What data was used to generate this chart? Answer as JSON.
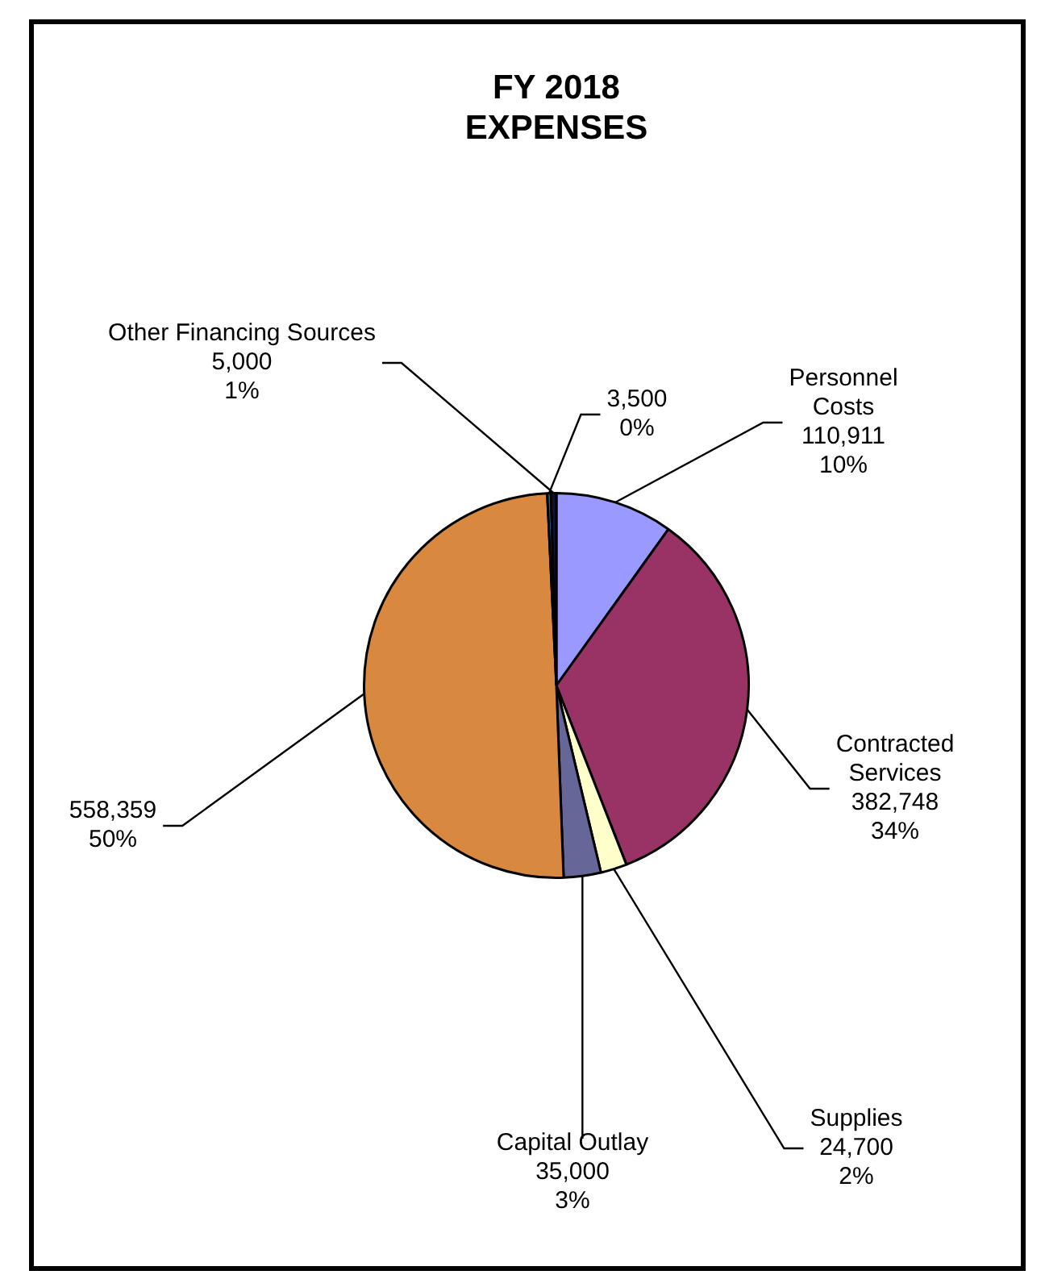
{
  "chart_data": {
    "type": "pie",
    "title": "FY 2018 EXPENSES",
    "categories": [
      "Personnel Costs",
      "Contracted Services",
      "Supplies",
      "Capital Outlay",
      null,
      null,
      "Other Financing Sources"
    ],
    "values": [
      110911,
      382748,
      24700,
      35000,
      558359,
      3500,
      5000
    ],
    "colors": [
      "#9999ff",
      "#993366",
      "#ffffcc",
      "#666699",
      "#d98840",
      "#0a7090",
      "#111133"
    ],
    "value_labels": [
      "110,911\n10%",
      "382,748\n34%",
      "24,700\n2%",
      "35,000\n3%",
      "558,359\n50%",
      "3,500\n0%",
      "5,000\n1%"
    ],
    "legend": false
  }
}
